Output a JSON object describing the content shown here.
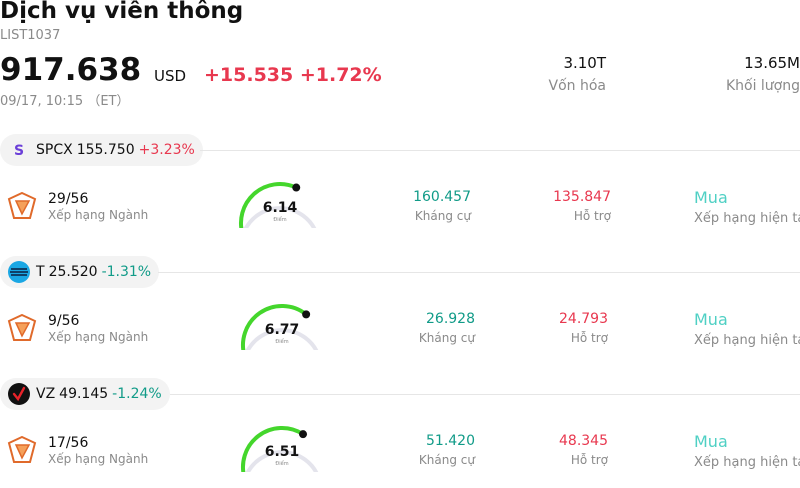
{
  "header": {
    "title": "Dịch vụ viễn thông",
    "code": "LIST1037",
    "price": "917.638",
    "currency": "USD",
    "change": "+15.535 +1.72%",
    "time": "09/17, 10:15 （ET）"
  },
  "stats": [
    {
      "value": "3.10T",
      "label": "Vốn hóa"
    },
    {
      "value": "13.65M",
      "label": "Khối lượng"
    }
  ],
  "colors": {
    "up": "#e8384f",
    "down": "#119b88",
    "rating": "#4fd0c4",
    "gauge": "#44d62c"
  },
  "stocks": [
    {
      "ticker": "SPCX",
      "price": "155.750",
      "change": "+3.23%",
      "change_dir": "up",
      "icon": "spcx-logo-icon",
      "rank": "29/56",
      "rank_label": "Xếp hạng Ngành",
      "score": "6.14",
      "score_fraction": 0.614,
      "score_label": "Điểm",
      "resistance": "160.457",
      "resistance_label": "Kháng cự",
      "support": "135.847",
      "support_label": "Hỗ trợ",
      "rating": "Mua",
      "rating_label": "Xếp hạng hiện tại"
    },
    {
      "ticker": "T",
      "price": "25.520",
      "change": "-1.31%",
      "change_dir": "down",
      "icon": "att-logo-icon",
      "rank": "9/56",
      "rank_label": "Xếp hạng Ngành",
      "score": "6.77",
      "score_fraction": 0.677,
      "score_label": "Điểm",
      "resistance": "26.928",
      "resistance_label": "Kháng cự",
      "support": "24.793",
      "support_label": "Hỗ trợ",
      "rating": "Mua",
      "rating_label": "Xếp hạng hiện tại"
    },
    {
      "ticker": "VZ",
      "price": "49.145",
      "change": "-1.24%",
      "change_dir": "down",
      "icon": "verizon-logo-icon",
      "rank": "17/56",
      "rank_label": "Xếp hạng Ngành",
      "score": "6.51",
      "score_fraction": 0.651,
      "score_label": "Điểm",
      "resistance": "51.420",
      "resistance_label": "Kháng cự",
      "support": "48.345",
      "support_label": "Hỗ trợ",
      "rating": "Mua",
      "rating_label": "Xếp hạng hiện tại"
    }
  ]
}
